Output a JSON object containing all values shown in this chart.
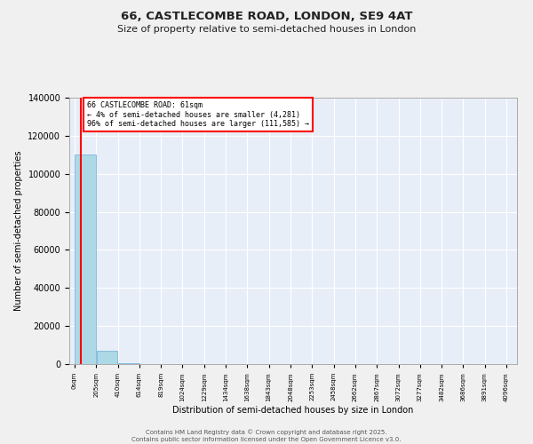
{
  "title_line1": "66, CASTLECOMBE ROAD, LONDON, SE9 4AT",
  "title_line2": "Size of property relative to semi-detached houses in London",
  "xlabel": "Distribution of semi-detached houses by size in London",
  "ylabel": "Number of semi-detached properties",
  "property_size": 61,
  "property_label": "66 CASTLECOMBE ROAD: 61sqm",
  "pct_smaller": 4,
  "num_smaller": 4281,
  "pct_larger": 96,
  "num_larger": 111585,
  "bin_edges": [
    0,
    205,
    410,
    614,
    819,
    1024,
    1229,
    1434,
    1638,
    1843,
    2048,
    2253,
    2458,
    2662,
    2867,
    3072,
    3277,
    3482,
    3686,
    3891,
    4096
  ],
  "bar_heights": [
    110000,
    7000,
    300,
    100,
    50,
    30,
    20,
    15,
    10,
    8,
    6,
    5,
    4,
    3,
    2,
    2,
    1,
    1,
    1,
    1
  ],
  "bar_color": "#add8e6",
  "bar_edgecolor": "#6baed6",
  "property_line_color": "#ff0000",
  "annotation_box_color": "#ff0000",
  "background_color": "#e8eef8",
  "grid_color": "#ffffff",
  "fig_background": "#f0f0f0",
  "ylim": [
    0,
    140000
  ],
  "yticks": [
    0,
    20000,
    40000,
    60000,
    80000,
    100000,
    120000,
    140000
  ],
  "footer_line1": "Contains HM Land Registry data © Crown copyright and database right 2025.",
  "footer_line2": "Contains public sector information licensed under the Open Government Licence v3.0."
}
